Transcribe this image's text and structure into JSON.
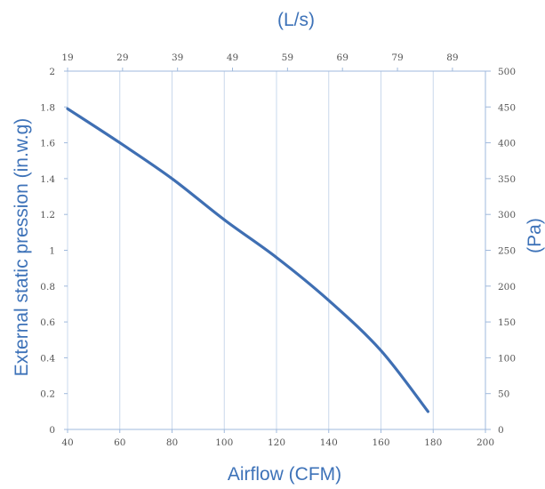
{
  "chart_data": {
    "type": "line",
    "title": "",
    "xlabel": "Airflow (CFM)",
    "x2label": "(L/s)",
    "ylabel": "External static pression (in.w.g)",
    "y2label": "(Pa)",
    "xlim": [
      40,
      200
    ],
    "ylim": [
      0,
      2
    ],
    "x2lim": [
      19,
      95
    ],
    "y2lim": [
      0,
      500
    ],
    "grid": true,
    "legend": "none",
    "x_ticks": [
      "40",
      "60",
      "80",
      "100",
      "120",
      "140",
      "160",
      "180",
      "200"
    ],
    "y_ticks": [
      "0",
      "0.2",
      "0.4",
      "0.6",
      "0.8",
      "1",
      "1.2",
      "1.4",
      "1.6",
      "1.8",
      "2"
    ],
    "x2_ticks": [
      "19",
      "29",
      "39",
      "49",
      "59",
      "69",
      "79",
      "89"
    ],
    "y2_ticks": [
      "0",
      "50",
      "100",
      "150",
      "200",
      "250",
      "300",
      "350",
      "400",
      "450",
      "500"
    ],
    "series": [
      {
        "color": "#3f6fb3",
        "x": [
          40,
          60,
          80,
          100,
          120,
          140,
          160,
          178
        ],
        "y": [
          1.79,
          1.6,
          1.4,
          1.17,
          0.96,
          0.72,
          0.44,
          0.1
        ]
      }
    ]
  }
}
